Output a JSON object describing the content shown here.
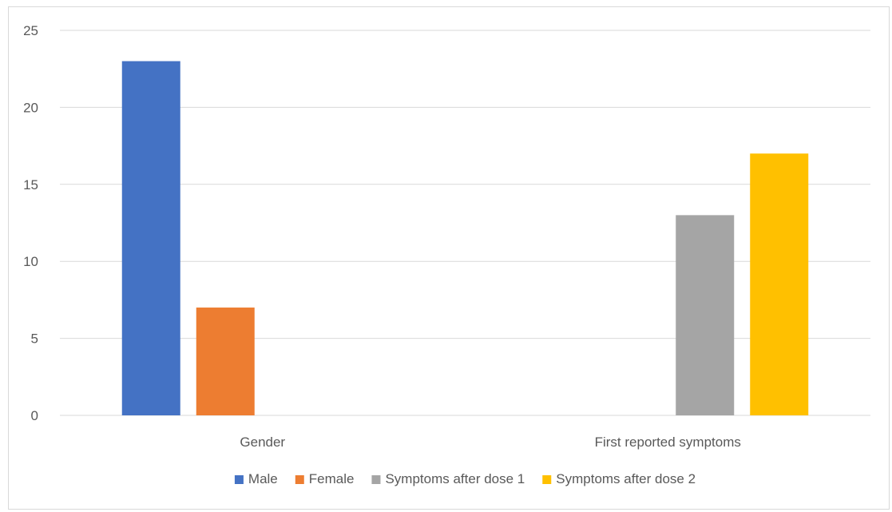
{
  "chart_data": {
    "type": "bar",
    "categories": [
      "Gender",
      "First reported symptoms"
    ],
    "series": [
      {
        "name": "Male",
        "color": "#4472C4",
        "values": [
          23,
          null
        ]
      },
      {
        "name": "Female",
        "color": "#ED7D31",
        "values": [
          7,
          null
        ]
      },
      {
        "name": "Symptoms after dose 1",
        "color": "#A5A5A5",
        "values": [
          null,
          13
        ]
      },
      {
        "name": "Symptoms after dose 2",
        "color": "#FFC000",
        "values": [
          null,
          17
        ]
      }
    ],
    "ylim": [
      0,
      25
    ],
    "yticks": [
      0,
      5,
      10,
      15,
      20,
      25
    ],
    "grid": true,
    "legend_position": "bottom",
    "title": "",
    "xlabel": "",
    "ylabel": ""
  }
}
